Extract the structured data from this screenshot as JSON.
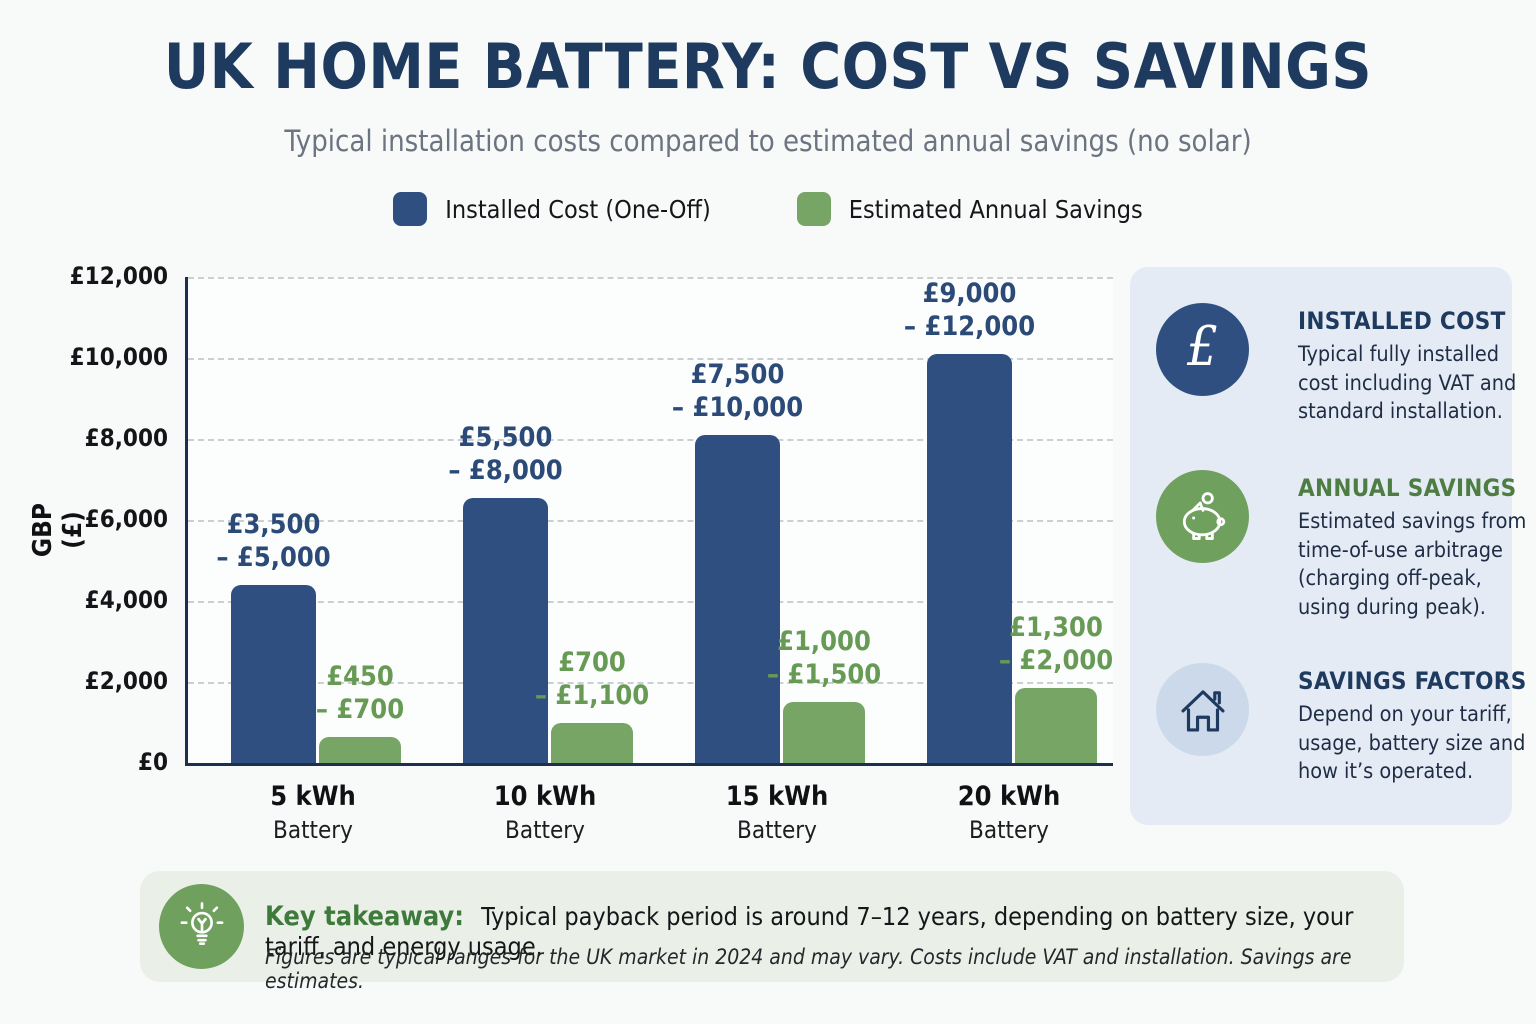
{
  "title": "UK HOME BATTERY: COST VS SAVINGS",
  "subtitle": "Typical installation costs compared to estimated annual savings (no solar)",
  "legend": [
    {
      "label": "Installed Cost (One-Off)",
      "color": "#2e4f7f"
    },
    {
      "label": "Estimated Annual Savings",
      "color": "#76a566"
    }
  ],
  "chart_data": {
    "type": "bar",
    "title": "UK Home Battery: Cost vs Savings",
    "ylabel": "GBP (£)",
    "ylim": [
      0,
      12000
    ],
    "ytick_step": 2000,
    "yticks": [
      "£0",
      "£2,000",
      "£4,000",
      "£6,000",
      "£8,000",
      "£10,000",
      "£12,000"
    ],
    "grid": "horizontal-dashed",
    "legend_position": "top",
    "categories": [
      "5 kWh",
      "10 kWh",
      "15 kWh",
      "20 kWh"
    ],
    "category_sub": "Battery",
    "series": [
      {
        "name": "Installed Cost (One-Off)",
        "color": "#2e4f7f",
        "label_color": "#2b4a78",
        "values": [
          4400,
          6550,
          8100,
          10100
        ],
        "range_labels": [
          [
            "£3,500",
            "– £5,000"
          ],
          [
            "£5,500",
            "– £8,000"
          ],
          [
            "£7,500",
            "– £10,000"
          ],
          [
            "£9,000",
            "– £12,000"
          ]
        ]
      },
      {
        "name": "Estimated Annual Savings",
        "color": "#76a566",
        "label_color": "#679a55",
        "values": [
          640,
          990,
          1500,
          1850
        ],
        "range_labels": [
          [
            "£450",
            "– £700"
          ],
          [
            "£700",
            "– £1,100"
          ],
          [
            "£1,000",
            "– £1,500"
          ],
          [
            "£1,300",
            "– £2,000"
          ]
        ]
      }
    ]
  },
  "sidebar": {
    "items": [
      {
        "heading": "INSTALLED COST",
        "heading_color": "#1e3a5f",
        "circle_color": "#2e4f7f",
        "icon": "pound-icon",
        "body": "Typical fully installed cost including VAT and standard installation."
      },
      {
        "heading": "ANNUAL SAVINGS",
        "heading_color": "#4e7d44",
        "circle_color": "#6fa05e",
        "icon": "piggy-bank-icon",
        "body": "Estimated savings from time-of-use arbitrage (charging off-peak, using during peak)."
      },
      {
        "heading": "SAVINGS FACTORS",
        "heading_color": "#1e3a5f",
        "circle_color": "#ccd9ea",
        "icon": "house-icon",
        "body": "Depend on your tariff, usage, battery size and how it’s operated."
      }
    ]
  },
  "takeaway": {
    "heading": "Key takeaway:",
    "text": "Typical payback period is around 7–12 years, depending on battery size, your tariff, and energy usage.",
    "footnote": "Figures are typical ranges for the UK market in 2024 and may vary. Costs include VAT and installation. Savings are estimates."
  }
}
